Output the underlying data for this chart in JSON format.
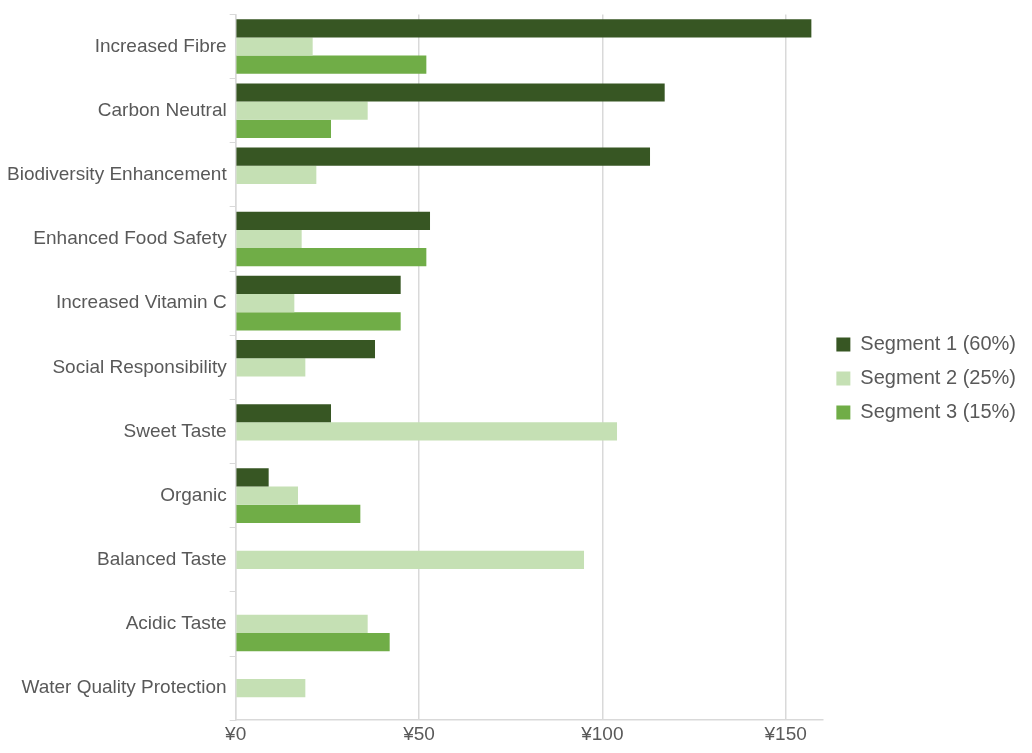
{
  "chart_data": {
    "type": "bar",
    "orientation": "horizontal",
    "categories": [
      "Increased Fibre",
      "Carbon Neutral",
      "Biodiversity Enhancement",
      "Enhanced Food Safety",
      "Increased Vitamin C",
      "Social Responsibility",
      "Sweet Taste",
      "Organic",
      "Balanced Taste",
      "Acidic Taste",
      "Water Quality Protection"
    ],
    "series": [
      {
        "name": "Segment 1 (60%)",
        "color": "#375623",
        "values": [
          157,
          117,
          113,
          53,
          45,
          38,
          26,
          9,
          null,
          null,
          null
        ]
      },
      {
        "name": "Segment 2 (25%)",
        "color": "#c5e0b4",
        "values": [
          21,
          36,
          22,
          18,
          16,
          19,
          104,
          17,
          95,
          36,
          19
        ]
      },
      {
        "name": "Segment 3 (15%)",
        "color": "#70ad47",
        "values": [
          52,
          26,
          null,
          52,
          45,
          null,
          null,
          34,
          null,
          42,
          null
        ]
      }
    ],
    "xlim": [
      0,
      160
    ],
    "xticks": [
      {
        "value": 0,
        "label": "¥0"
      },
      {
        "value": 50,
        "label": "¥50"
      },
      {
        "value": 100,
        "label": "¥100"
      },
      {
        "value": 150,
        "label": "¥150"
      }
    ],
    "grid": "x",
    "legend": "right"
  }
}
